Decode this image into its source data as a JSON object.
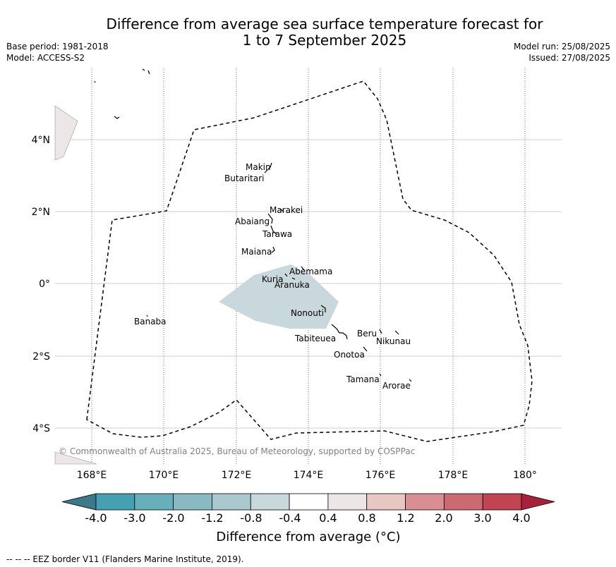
{
  "title_line1": "Difference from average sea surface temperature forecast for",
  "title_line2": "1 to 7 September 2025",
  "base_period": "Base period: 1981-2018",
  "model": "Model: ACCESS-S2",
  "model_run": "Model run: 25/08/2025",
  "issued": "Issued: 27/08/2025",
  "copyright": "© Commonwealth of Australia 2025, Bureau of Meteorology, supported by COSPPac",
  "footer": "--  --  -- EEZ border V11 (Flanders Marine Institute, 2019).",
  "colorbar_title": "Difference from average (°C)",
  "colorbar_ticks": [
    "-4.0",
    "-3.0",
    "-2.0",
    "-1.2",
    "-0.8",
    "-0.4",
    "0.4",
    "0.8",
    "1.2",
    "2.0",
    "3.0",
    "4.0"
  ],
  "colorbar_colors": {
    "under": "#3a7a8a",
    "bins": [
      "#46a0b2",
      "#67afbb",
      "#89b9c2",
      "#aac8ce",
      "#c9d8dc",
      "#ffffff",
      "#ede6e6",
      "#e8c7c3",
      "#d98e93",
      "#cc6a73",
      "#c24452"
    ],
    "over": "#a8203b"
  },
  "x_ticks": [
    "168°E",
    "170°E",
    "172°E",
    "174°E",
    "176°E",
    "178°E",
    "180°"
  ],
  "y_ticks": [
    "4°N",
    "2°N",
    "0°",
    "2°S",
    "4°S"
  ],
  "islands": [
    "Makin",
    "Butaritari",
    "Marakei",
    "Abaiang",
    "Tarawa",
    "Maiana",
    "Abemama",
    "Kuria",
    "Aranuka",
    "Banaba",
    "Nonouti",
    "Tabiteuea",
    "Beru",
    "Nikunau",
    "Onotoa",
    "Tamana",
    "Arorae"
  ],
  "anomaly_region_color": "#c9d8dc"
}
